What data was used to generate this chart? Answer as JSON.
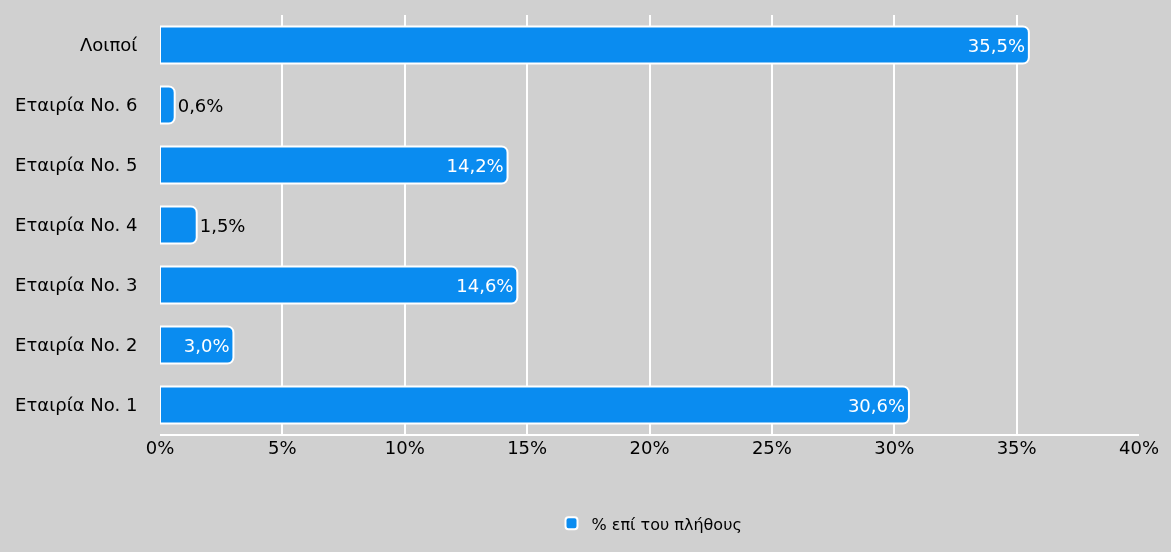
{
  "chart_data": {
    "type": "bar",
    "orientation": "horizontal",
    "categories": [
      "Λοιποί",
      "Εταιρία No. 6",
      "Εταιρία No. 5",
      "Εταιρία No. 4",
      "Εταιρία No. 3",
      "Εταιρία No. 2",
      "Εταιρία No. 1"
    ],
    "series": [
      {
        "name": "% επί του πλήθους",
        "color": "#0a8cf0",
        "values": [
          35.5,
          0.6,
          14.2,
          1.5,
          14.6,
          3.0,
          30.6
        ],
        "value_labels": [
          "35,5%",
          "0,6%",
          "14,2%",
          "1,5%",
          "14,6%",
          "3,0%",
          "30,6%"
        ]
      }
    ],
    "xlim": [
      0,
      40
    ],
    "xticks": [
      {
        "value": 0,
        "label": "0%"
      },
      {
        "value": 5,
        "label": "5%"
      },
      {
        "value": 10,
        "label": "10%"
      },
      {
        "value": 15,
        "label": "15%"
      },
      {
        "value": 20,
        "label": "20%"
      },
      {
        "value": 25,
        "label": "25%"
      },
      {
        "value": 30,
        "label": "30%"
      },
      {
        "value": 35,
        "label": "35%"
      },
      {
        "value": 40,
        "label": "40%"
      }
    ],
    "grid": "x",
    "legend": "bottom"
  }
}
